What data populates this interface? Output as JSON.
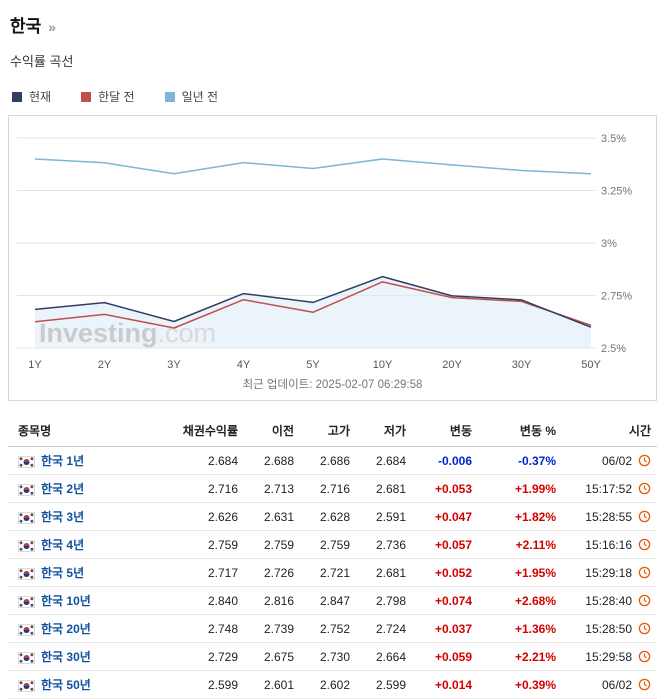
{
  "page": {
    "title": "한국",
    "title_suffix": "»",
    "subtitle": "수익률 곡선"
  },
  "colors": {
    "up": "#d40000",
    "down": "#0026d0",
    "link": "#10519f",
    "clock": "#e8590c"
  },
  "legend": [
    {
      "label": "현재",
      "color": "#303e63"
    },
    {
      "label": "한달 전",
      "color": "#c0504d"
    },
    {
      "label": "일년 전",
      "color": "#7db6d7"
    }
  ],
  "chart_data": {
    "type": "line",
    "title": "수익률 곡선",
    "categories": [
      "1Y",
      "2Y",
      "3Y",
      "4Y",
      "5Y",
      "10Y",
      "20Y",
      "30Y",
      "50Y"
    ],
    "series": [
      {
        "name": "현재",
        "color": "#303e63",
        "values": [
          2.684,
          2.716,
          2.626,
          2.759,
          2.717,
          2.84,
          2.748,
          2.729,
          2.599
        ]
      },
      {
        "name": "한달 전",
        "color": "#c0504d",
        "values": [
          2.625,
          2.66,
          2.595,
          2.73,
          2.67,
          2.815,
          2.74,
          2.722,
          2.608
        ]
      },
      {
        "name": "일년 전",
        "color": "#7db6d7",
        "values": [
          3.4,
          3.382,
          3.33,
          3.383,
          3.355,
          3.4,
          3.372,
          3.345,
          3.33
        ]
      }
    ],
    "ylim": [
      2.5,
      3.5
    ],
    "yticks": [
      {
        "label": "3.5%",
        "value": 3.5
      },
      {
        "label": "3.25%",
        "value": 3.25
      },
      {
        "label": "3%",
        "value": 3.0
      },
      {
        "label": "2.75%",
        "value": 2.75
      },
      {
        "label": "2.5%",
        "value": 2.5
      }
    ],
    "grid": true,
    "legend_position": "top-left",
    "fill_color": "#ddecf8"
  },
  "watermark": {
    "text": "Investing",
    "suffix": ".com"
  },
  "last_update": "최근 업데이트: 2025-02-07 06:29:58",
  "table": {
    "headers": [
      "종목명",
      "채권수익률",
      "이전",
      "고가",
      "저가",
      "변동",
      "변동 %",
      "시간"
    ],
    "rows": [
      {
        "name": "한국 1년",
        "yield": "2.684",
        "prev": "2.688",
        "high": "2.686",
        "low": "2.684",
        "change": "-0.006",
        "change_pct": "-0.37%",
        "time": "06/02"
      },
      {
        "name": "한국 2년",
        "yield": "2.716",
        "prev": "2.713",
        "high": "2.716",
        "low": "2.681",
        "change": "+0.053",
        "change_pct": "+1.99%",
        "time": "15:17:52"
      },
      {
        "name": "한국 3년",
        "yield": "2.626",
        "prev": "2.631",
        "high": "2.628",
        "low": "2.591",
        "change": "+0.047",
        "change_pct": "+1.82%",
        "time": "15:28:55"
      },
      {
        "name": "한국 4년",
        "yield": "2.759",
        "prev": "2.759",
        "high": "2.759",
        "low": "2.736",
        "change": "+0.057",
        "change_pct": "+2.11%",
        "time": "15:16:16"
      },
      {
        "name": "한국 5년",
        "yield": "2.717",
        "prev": "2.726",
        "high": "2.721",
        "low": "2.681",
        "change": "+0.052",
        "change_pct": "+1.95%",
        "time": "15:29:18"
      },
      {
        "name": "한국 10년",
        "yield": "2.840",
        "prev": "2.816",
        "high": "2.847",
        "low": "2.798",
        "change": "+0.074",
        "change_pct": "+2.68%",
        "time": "15:28:40"
      },
      {
        "name": "한국 20년",
        "yield": "2.748",
        "prev": "2.739",
        "high": "2.752",
        "low": "2.724",
        "change": "+0.037",
        "change_pct": "+1.36%",
        "time": "15:28:50"
      },
      {
        "name": "한국 30년",
        "yield": "2.729",
        "prev": "2.675",
        "high": "2.730",
        "low": "2.664",
        "change": "+0.059",
        "change_pct": "+2.21%",
        "time": "15:29:58"
      },
      {
        "name": "한국 50년",
        "yield": "2.599",
        "prev": "2.601",
        "high": "2.602",
        "low": "2.599",
        "change": "+0.014",
        "change_pct": "+0.39%",
        "time": "06/02"
      }
    ]
  }
}
